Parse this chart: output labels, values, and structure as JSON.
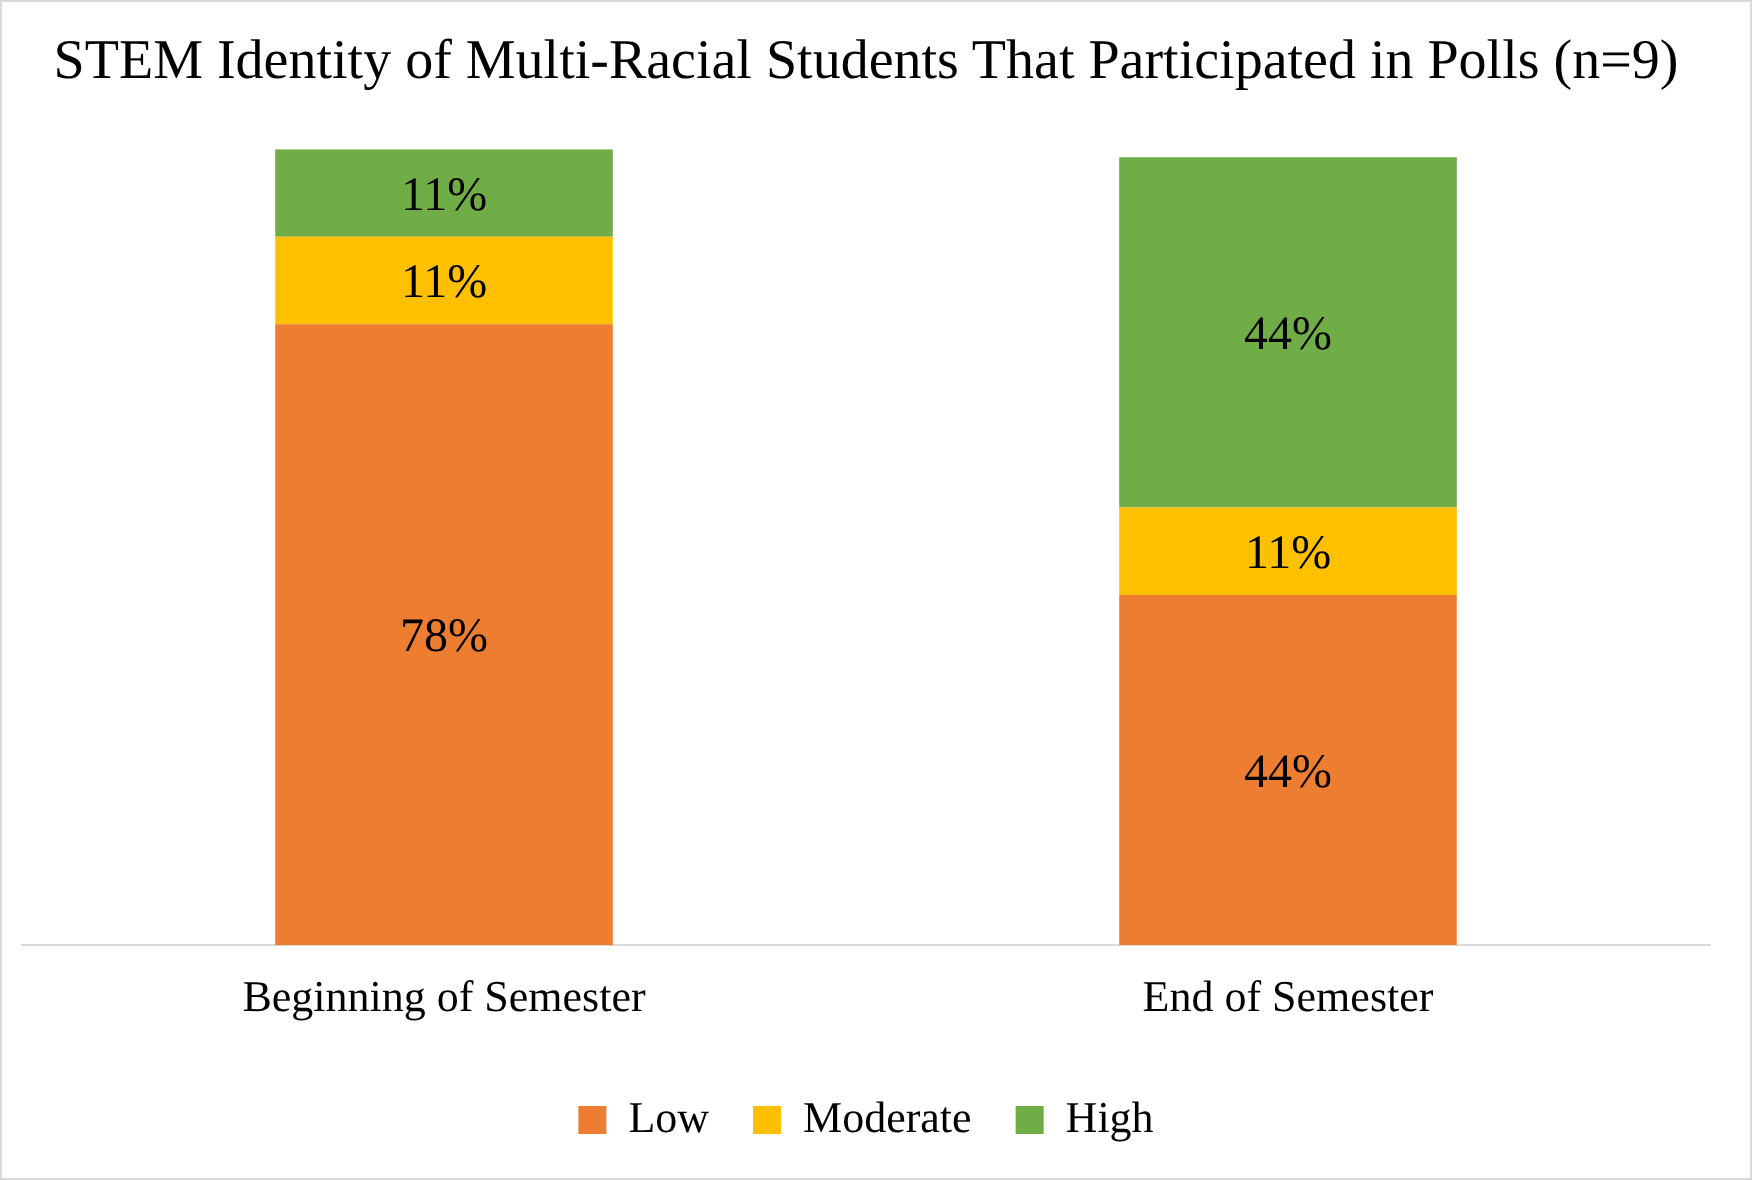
{
  "chart_data": {
    "type": "bar",
    "title": "STEM Identity of Multi-Racial Students That Participated in Polls (n=9)",
    "categories": [
      "Beginning of Semester",
      "End of Semester"
    ],
    "stacked": true,
    "legend": "bottom",
    "grid": false,
    "tick_labels": "x",
    "series": [
      {
        "name": "Low",
        "color": "#ed7d31",
        "values": [
          78,
          44
        ],
        "value_labels": [
          "78%",
          "44%"
        ]
      },
      {
        "name": "Moderate",
        "color": "#ffc000",
        "values": [
          11,
          11
        ],
        "value_labels": [
          "11%",
          "11%"
        ]
      },
      {
        "name": "High",
        "color": "#70ad47",
        "values": [
          11,
          44
        ],
        "value_labels": [
          "11%",
          "44%"
        ]
      }
    ]
  }
}
